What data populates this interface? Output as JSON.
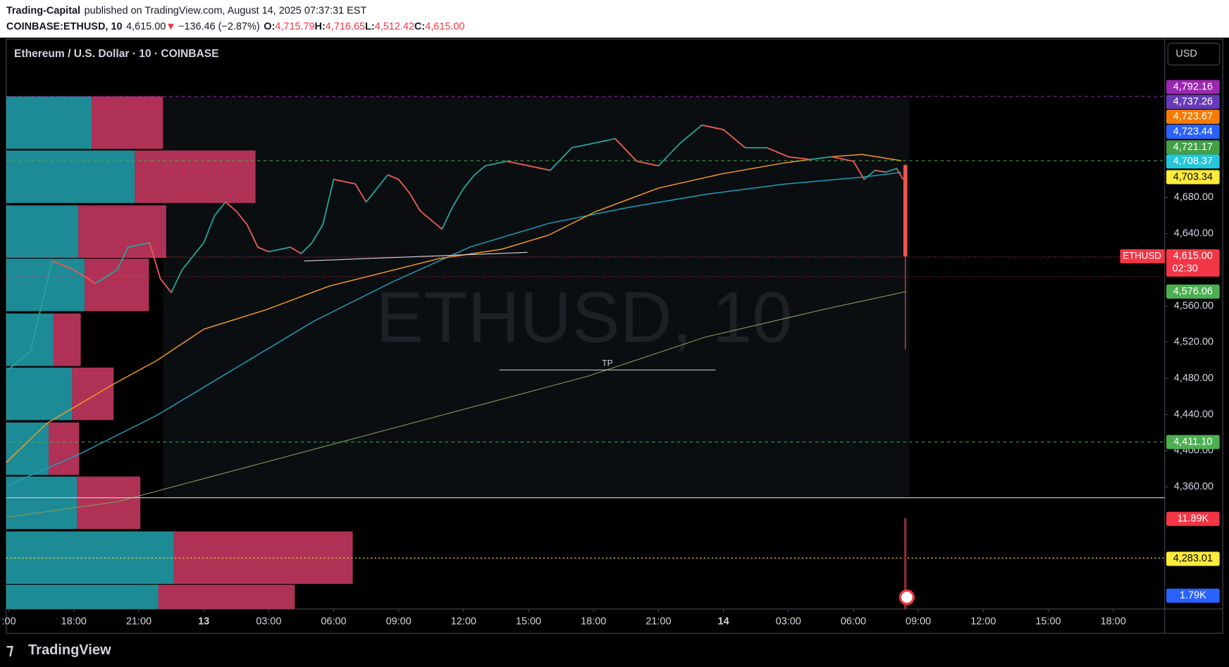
{
  "header": {
    "author": "Trading-Capital",
    "published": "published on TradingView.com, August 14, 2025 07:37:31 EST",
    "symbol": "COINBASE:ETHUSD, 10",
    "last": "4,615.00",
    "change": "−136.46 (−2.87%)",
    "o_label": "O:",
    "h_label": "H:",
    "l_label": "L:",
    "c_label": "C:"
  },
  "chart_data": {
    "type": "candlestick",
    "title": "Ethereum / U.S. Dollar · 10 · COINBASE",
    "watermark": "ETHUSD, 10",
    "currency": "USD",
    "annotation": "TP",
    "x": [
      -9,
      -8,
      -7.5,
      -7,
      -6,
      -5,
      -4,
      -3.5,
      -2.5,
      -2,
      -1.5,
      -1,
      0,
      0.5,
      1,
      1.5,
      2,
      2.5,
      3,
      4,
      4.5,
      5,
      5.5,
      6,
      7,
      7.5,
      8,
      8.5,
      9,
      9.5,
      10,
      11,
      11.5,
      12,
      12.5,
      13,
      14,
      15,
      16,
      17,
      18,
      19,
      20,
      21,
      22,
      23,
      24,
      25,
      26,
      27,
      28,
      29,
      30,
      30.5,
      31,
      31.5,
      32,
      32.3
    ],
    "values": [
      4490,
      4510,
      4560,
      4610,
      4600,
      4585,
      4600,
      4625,
      4630,
      4590,
      4575,
      4600,
      4630,
      4660,
      4675,
      4665,
      4650,
      4625,
      4620,
      4625,
      4618,
      4630,
      4650,
      4700,
      4695,
      4675,
      4690,
      4705,
      4700,
      4685,
      4665,
      4645,
      4670,
      4690,
      4705,
      4715,
      4720,
      4715,
      4710,
      4735,
      4740,
      4745,
      4720,
      4715,
      4740,
      4760,
      4755,
      4735,
      4735,
      4725,
      4722,
      4725,
      4720,
      4700,
      4710,
      4708,
      4712,
      4700
    ],
    "last_candle": {
      "x": 32.4,
      "open": {
        "value": 4715.79,
        "label": "4,715.79"
      },
      "high": {
        "value": 4716.65,
        "label": "4,716.65"
      },
      "low": {
        "value": 4512.42,
        "label": "4,512.42"
      },
      "close": {
        "value": 4615.0,
        "label": "4,615.00"
      }
    },
    "xlim": [
      -9.12,
      44.38
    ],
    "ylim": [
      4225,
      4855
    ],
    "yticks": [
      {
        "value": 4680,
        "label": "4,680.00"
      },
      {
        "value": 4640,
        "label": "4,640.00"
      },
      {
        "value": 4560,
        "label": "4,560.00"
      },
      {
        "value": 4520,
        "label": "4,520.00"
      },
      {
        "value": 4480,
        "label": "4,480.00"
      },
      {
        "value": 4440,
        "label": "4,440.00"
      },
      {
        "value": 4400,
        "label": "4,400.00"
      },
      {
        "value": 4360,
        "label": "4,360.00"
      }
    ],
    "xticks": [
      {
        "value": -9,
        "label": ":00"
      },
      {
        "value": -6,
        "label": "18:00"
      },
      {
        "value": -3,
        "label": "21:00"
      },
      {
        "value": 0,
        "label": "13"
      },
      {
        "value": 3,
        "label": "03:00"
      },
      {
        "value": 6,
        "label": "06:00"
      },
      {
        "value": 9,
        "label": "09:00"
      },
      {
        "value": 12,
        "label": "12:00"
      },
      {
        "value": 15,
        "label": "15:00"
      },
      {
        "value": 18,
        "label": "18:00"
      },
      {
        "value": 21,
        "label": "21:00"
      },
      {
        "value": 24,
        "label": "14"
      },
      {
        "value": 27,
        "label": "03:00"
      },
      {
        "value": 30,
        "label": "06:00"
      },
      {
        "value": 33,
        "label": "09:00"
      },
      {
        "value": 36,
        "label": "12:00"
      },
      {
        "value": 39,
        "label": "15:00"
      },
      {
        "value": 42,
        "label": "18:00"
      }
    ],
    "price_tags": [
      {
        "label": "4,792.16",
        "color": "#9c27b0"
      },
      {
        "label": "4,737.26",
        "color": "#673ab7"
      },
      {
        "label": "4,723.67",
        "color": "#f57c00"
      },
      {
        "label": "4,723.44",
        "color": "#2962ff"
      },
      {
        "label": "4,721.17",
        "color": "#43a047"
      },
      {
        "label": "4,708.37",
        "color": "#26c6da"
      },
      {
        "label": "4,703.34",
        "color": "#ffeb3b"
      },
      {
        "label": "4,576.06",
        "color": "#4caf50"
      },
      {
        "label": "4,411.10",
        "color": "#4caf50"
      },
      {
        "label": "11.89K",
        "color": "#f23645"
      },
      {
        "label": "4,283.01",
        "color": "#ffeb3b"
      },
      {
        "label": "1.79K",
        "color": "#2962ff"
      }
    ],
    "symbol_tag": "ETHUSD",
    "countdown": "02:30"
  },
  "footer": {
    "brand": "TradingView"
  }
}
